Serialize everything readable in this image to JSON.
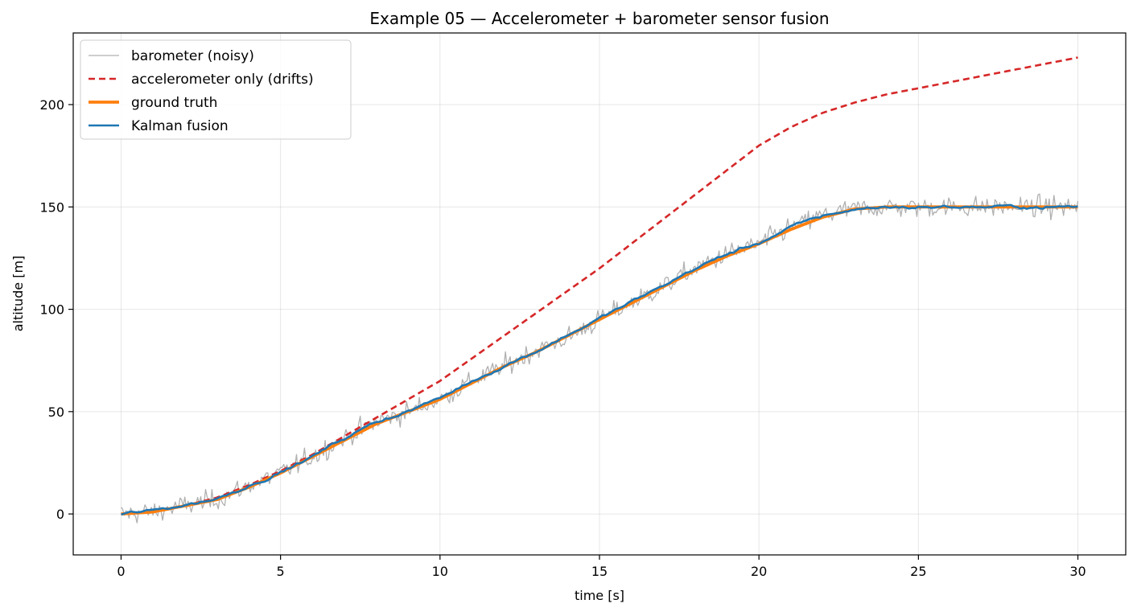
{
  "chart_data": {
    "type": "line",
    "title": "Example 05 — Accelerometer + barometer sensor fusion",
    "xlabel": "time [s]",
    "ylabel": "altitude [m]",
    "xlim": [
      -1.5,
      31.5
    ],
    "ylim": [
      -20,
      235
    ],
    "xticks": [
      0,
      5,
      10,
      15,
      20,
      25,
      30
    ],
    "yticks": [
      0,
      50,
      100,
      150,
      200
    ],
    "grid": true,
    "legend_position": "top-left",
    "series": [
      {
        "name": "barometer (noisy)",
        "color": "#b0b0b0",
        "style": "solid-thin",
        "noise_amplitude_m": 3.5,
        "x": [
          0,
          1,
          2,
          3,
          4,
          5,
          6,
          7,
          8,
          9,
          10,
          11,
          12,
          13,
          14,
          15,
          16,
          17,
          18,
          19,
          20,
          21,
          22,
          23,
          24,
          25,
          26,
          27,
          28,
          29,
          30
        ],
        "y": [
          0,
          1,
          4,
          7,
          14,
          20,
          28,
          37,
          45,
          50,
          56,
          65,
          72,
          80,
          86,
          95,
          103,
          111,
          120,
          127,
          132,
          140,
          146,
          149,
          150,
          150,
          150,
          150,
          150,
          150,
          150
        ]
      },
      {
        "name": "accelerometer only (drifts)",
        "color": "#d62728",
        "style": "dashed",
        "x": [
          0,
          1,
          2,
          3,
          4,
          5,
          6,
          7,
          8,
          9,
          10,
          11,
          12,
          13,
          14,
          15,
          16,
          17,
          18,
          19,
          20,
          21,
          22,
          23,
          24,
          25,
          26,
          27,
          28,
          29,
          30
        ],
        "y": [
          0,
          1.5,
          4,
          8,
          14,
          21,
          29,
          38,
          47,
          56,
          65,
          76,
          87,
          98,
          109,
          120,
          132,
          144,
          156,
          168,
          180,
          189,
          196,
          201,
          205,
          208,
          211,
          214,
          217,
          220,
          223
        ]
      },
      {
        "name": "ground truth",
        "color": "#ff7f0e",
        "style": "solid-thick",
        "x": [
          0,
          1,
          2,
          3,
          4,
          5,
          6,
          7,
          8,
          9,
          10,
          11,
          12,
          13,
          14,
          15,
          16,
          17,
          18,
          19,
          20,
          21,
          22,
          23,
          24,
          25,
          26,
          27,
          28,
          29,
          30
        ],
        "y": [
          0,
          1,
          4,
          7,
          13,
          20,
          28,
          36,
          44,
          50,
          56,
          64,
          72,
          79,
          87,
          95,
          103,
          111,
          119,
          126,
          132,
          139,
          145,
          149,
          150,
          150,
          150,
          150,
          150,
          150,
          150
        ]
      },
      {
        "name": "Kalman fusion",
        "color": "#1f77b4",
        "style": "solid",
        "x": [
          0,
          1,
          2,
          3,
          4,
          5,
          6,
          7,
          8,
          9,
          10,
          11,
          12,
          13,
          14,
          15,
          16,
          17,
          18,
          19,
          20,
          21,
          22,
          23,
          24,
          25,
          26,
          27,
          28,
          29,
          30
        ],
        "y": [
          0,
          1.5,
          4.5,
          7.5,
          14,
          20.5,
          28,
          37,
          45,
          50.5,
          56.5,
          65,
          72.5,
          79.5,
          87.5,
          95.5,
          103.5,
          111.5,
          120,
          127,
          132.5,
          140,
          145.5,
          149,
          150,
          150,
          150,
          150,
          150,
          150,
          150
        ]
      }
    ]
  }
}
